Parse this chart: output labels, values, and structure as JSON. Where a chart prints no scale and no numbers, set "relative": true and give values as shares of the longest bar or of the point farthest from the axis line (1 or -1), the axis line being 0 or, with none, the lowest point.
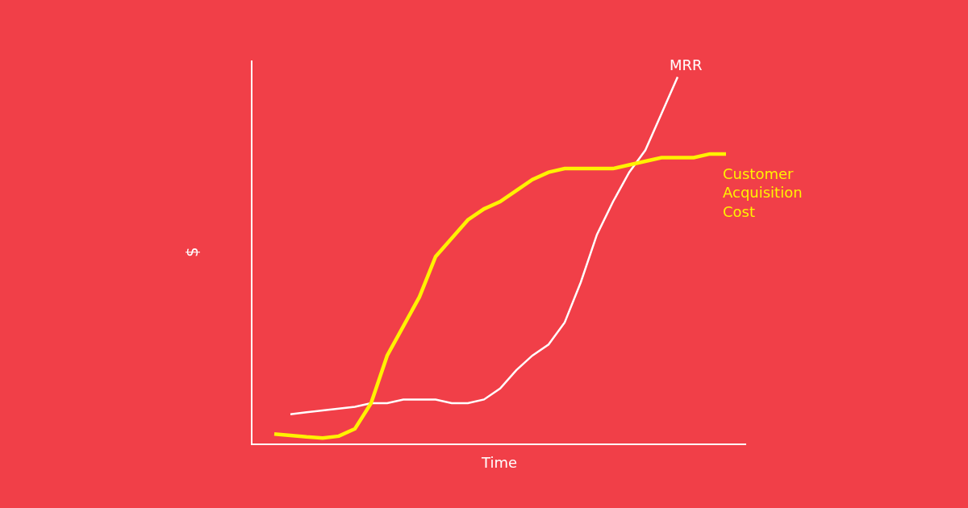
{
  "chart_data": {
    "type": "line",
    "relative": true,
    "xlabel": "Time",
    "ylabel": "$",
    "grid": false,
    "legend": false,
    "marker": "none",
    "line_style": "solid",
    "categories": [
      null,
      null,
      null,
      null,
      null,
      null,
      null,
      null,
      null,
      null,
      null,
      null,
      null,
      null,
      null,
      null,
      null,
      null,
      null,
      null,
      null,
      null,
      null,
      null,
      null,
      null,
      null,
      null,
      null
    ],
    "series": [
      {
        "name": "MRR",
        "color": "#ffffff",
        "values": [
          null,
          0.08,
          0.085,
          0.09,
          0.095,
          0.1,
          0.11,
          0.11,
          0.12,
          0.12,
          0.12,
          0.11,
          0.11,
          0.12,
          0.15,
          0.2,
          0.24,
          0.27,
          0.33,
          0.44,
          0.57,
          0.66,
          0.74,
          0.8,
          0.9,
          1,
          null,
          null,
          null
        ]
      },
      {
        "name": "Customer Acquisition Cost",
        "color": "#fff200",
        "values": [
          0.026,
          0.022,
          0.018,
          0.015,
          0.02,
          0.04,
          0.11,
          0.24,
          0.32,
          0.4,
          0.51,
          0.56,
          0.61,
          0.64,
          0.66,
          0.69,
          0.72,
          0.74,
          0.75,
          0.75,
          0.75,
          0.75,
          0.76,
          0.77,
          0.78,
          0.78,
          0.78,
          0.79,
          0.79
        ]
      }
    ]
  }
}
